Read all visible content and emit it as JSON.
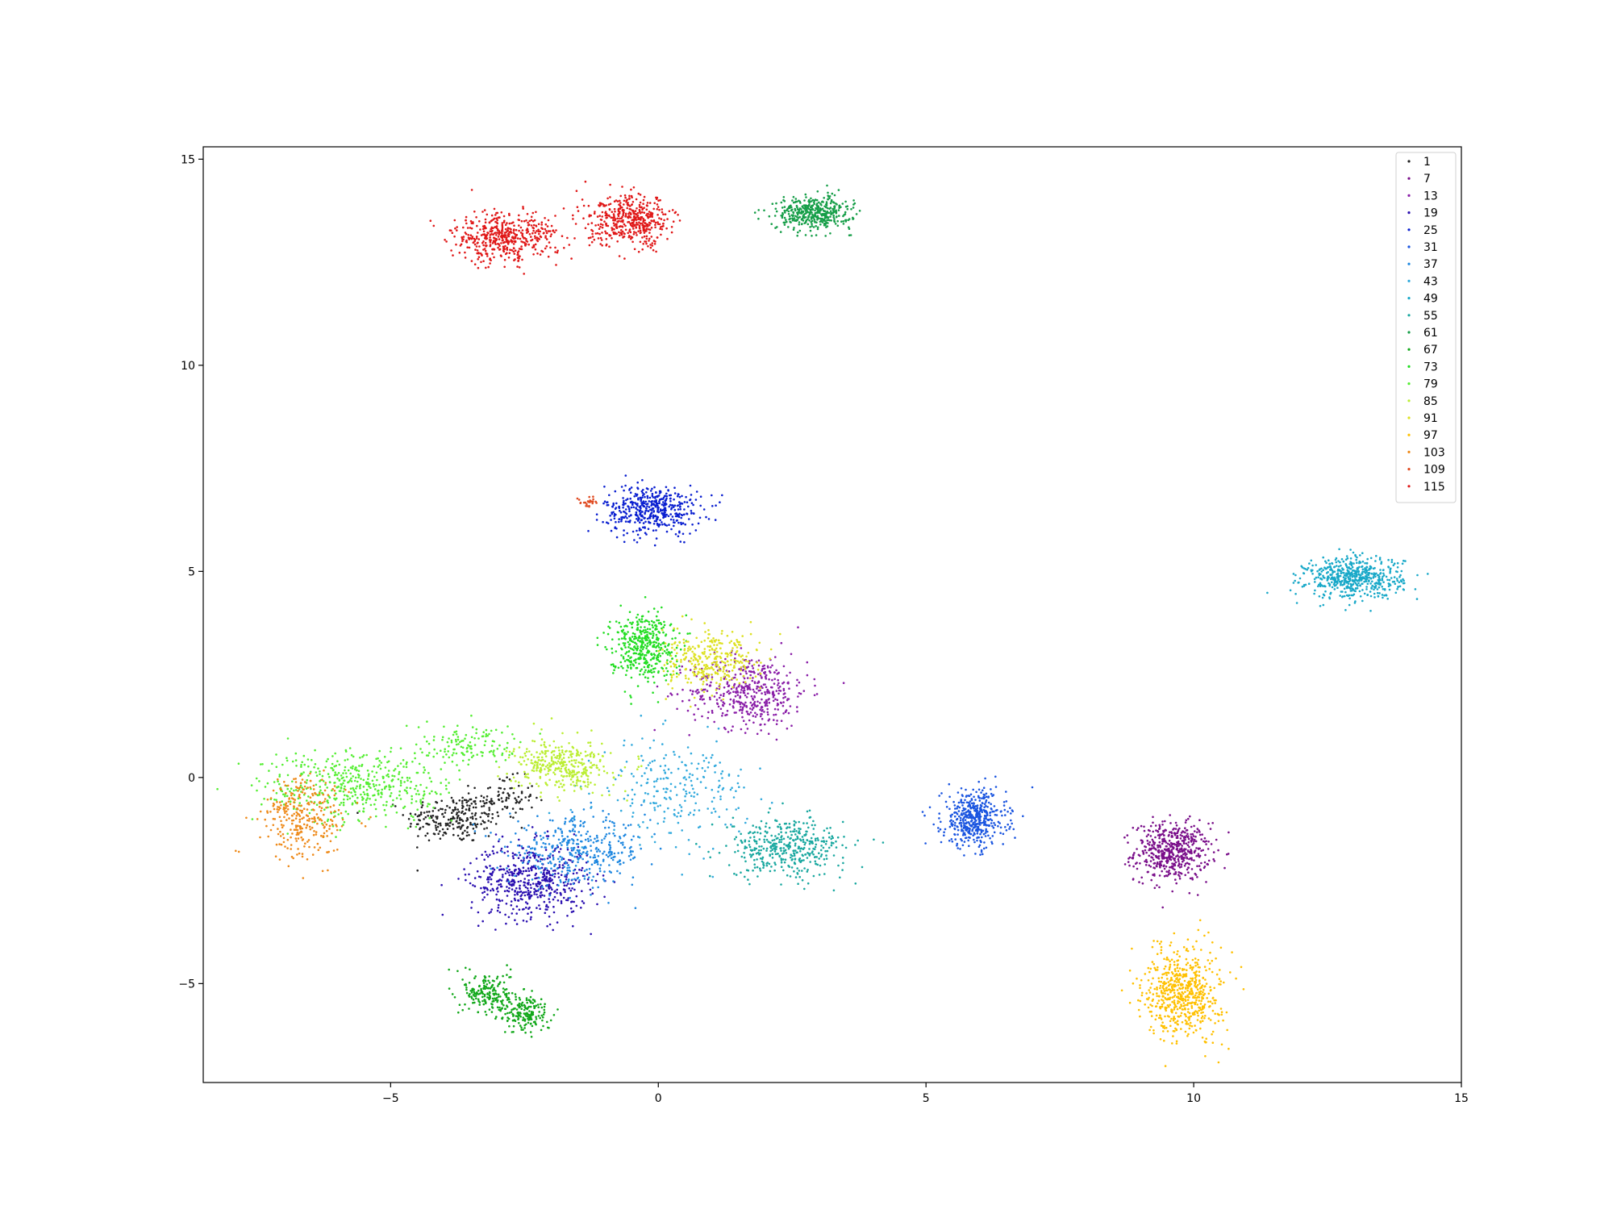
{
  "chart_data": {
    "type": "scatter",
    "title": "",
    "xlabel": "",
    "ylabel": "",
    "xlim": [
      -8.5,
      15.0
    ],
    "ylim": [
      -7.4,
      15.3
    ],
    "xticks": [
      -5,
      0,
      5,
      10,
      15
    ],
    "yticks": [
      -5,
      0,
      5,
      10,
      15
    ],
    "xtick_labels": [
      "−5",
      "0",
      "5",
      "10",
      "15"
    ],
    "ytick_labels": [
      "−5",
      "0",
      "5",
      "10",
      "15"
    ],
    "grid": false,
    "legend_placement": "top-right",
    "marker_size": 1.3,
    "series": [
      {
        "name": "1",
        "color": "#222222",
        "clusters": [
          {
            "center": [
              -3.8,
              -1.0
            ],
            "spread": [
              0.45,
              0.3
            ],
            "count": 220
          },
          {
            "center": [
              -2.9,
              -0.5
            ],
            "spread": [
              0.3,
              0.25
            ],
            "count": 90
          }
        ]
      },
      {
        "name": "7",
        "color": "#7a0f8a",
        "clusters": [
          {
            "center": [
              9.6,
              -1.8
            ],
            "spread": [
              0.35,
              0.35
            ],
            "count": 520
          }
        ]
      },
      {
        "name": "13",
        "color": "#8a1fa8",
        "clusters": [
          {
            "center": [
              1.7,
              2.1
            ],
            "spread": [
              0.55,
              0.45
            ],
            "count": 460
          }
        ]
      },
      {
        "name": "19",
        "color": "#2a0fb0",
        "clusters": [
          {
            "center": [
              -2.4,
              -2.5
            ],
            "spread": [
              0.55,
              0.45
            ],
            "count": 520
          }
        ]
      },
      {
        "name": "25",
        "color": "#0a1fd0",
        "clusters": [
          {
            "center": [
              -0.1,
              6.5
            ],
            "spread": [
              0.45,
              0.3
            ],
            "count": 460
          }
        ]
      },
      {
        "name": "31",
        "color": "#1a55e0",
        "clusters": [
          {
            "center": [
              5.9,
              -1.0
            ],
            "spread": [
              0.3,
              0.35
            ],
            "count": 460
          }
        ]
      },
      {
        "name": "37",
        "color": "#1f88e0",
        "clusters": [
          {
            "center": [
              -1.5,
              -1.8
            ],
            "spread": [
              0.65,
              0.4
            ],
            "count": 380
          }
        ]
      },
      {
        "name": "43",
        "color": "#33aadd",
        "clusters": [
          {
            "center": [
              0.3,
              -0.3
            ],
            "spread": [
              0.7,
              0.6
            ],
            "count": 240
          }
        ]
      },
      {
        "name": "49",
        "color": "#18a8c8",
        "clusters": [
          {
            "center": [
              13.0,
              4.85
            ],
            "spread": [
              0.45,
              0.25
            ],
            "count": 560
          }
        ]
      },
      {
        "name": "55",
        "color": "#1aa8a0",
        "clusters": [
          {
            "center": [
              2.4,
              -1.7
            ],
            "spread": [
              0.55,
              0.35
            ],
            "count": 420
          }
        ]
      },
      {
        "name": "61",
        "color": "#169e48",
        "clusters": [
          {
            "center": [
              2.9,
              13.7
            ],
            "spread": [
              0.35,
              0.2
            ],
            "count": 420
          }
        ]
      },
      {
        "name": "67",
        "color": "#12a81a",
        "clusters": [
          {
            "center": [
              -3.2,
              -5.2
            ],
            "spread": [
              0.22,
              0.25
            ],
            "count": 170
          },
          {
            "center": [
              -2.5,
              -5.7
            ],
            "spread": [
              0.25,
              0.25
            ],
            "count": 200
          }
        ]
      },
      {
        "name": "73",
        "color": "#22dd22",
        "clusters": [
          {
            "center": [
              -0.3,
              3.2
            ],
            "spread": [
              0.3,
              0.4
            ],
            "count": 420
          }
        ]
      },
      {
        "name": "79",
        "color": "#55ee33",
        "clusters": [
          {
            "center": [
              -5.6,
              -0.2
            ],
            "spread": [
              0.9,
              0.45
            ],
            "count": 480
          },
          {
            "center": [
              -3.5,
              0.8
            ],
            "spread": [
              0.5,
              0.25
            ],
            "count": 120
          }
        ]
      },
      {
        "name": "85",
        "color": "#bbee33",
        "clusters": [
          {
            "center": [
              -1.8,
              0.3
            ],
            "spread": [
              0.45,
              0.3
            ],
            "count": 360
          }
        ]
      },
      {
        "name": "91",
        "color": "#dde122",
        "clusters": [
          {
            "center": [
              1.0,
              2.8
            ],
            "spread": [
              0.45,
              0.35
            ],
            "count": 320
          }
        ]
      },
      {
        "name": "97",
        "color": "#ffc000",
        "clusters": [
          {
            "center": [
              9.8,
              -5.2
            ],
            "spread": [
              0.35,
              0.55
            ],
            "count": 620
          }
        ]
      },
      {
        "name": "103",
        "color": "#ee8a1a",
        "clusters": [
          {
            "center": [
              -6.6,
              -1.0
            ],
            "spread": [
              0.4,
              0.5
            ],
            "count": 300
          }
        ]
      },
      {
        "name": "109",
        "color": "#e04a20",
        "clusters": [
          {
            "center": [
              -1.3,
              6.7
            ],
            "spread": [
              0.08,
              0.06
            ],
            "count": 25
          }
        ]
      },
      {
        "name": "115",
        "color": "#e01818",
        "clusters": [
          {
            "center": [
              -2.9,
              13.1
            ],
            "spread": [
              0.5,
              0.3
            ],
            "count": 480
          },
          {
            "center": [
              -0.5,
              13.5
            ],
            "spread": [
              0.4,
              0.3
            ],
            "count": 460
          }
        ]
      }
    ]
  }
}
